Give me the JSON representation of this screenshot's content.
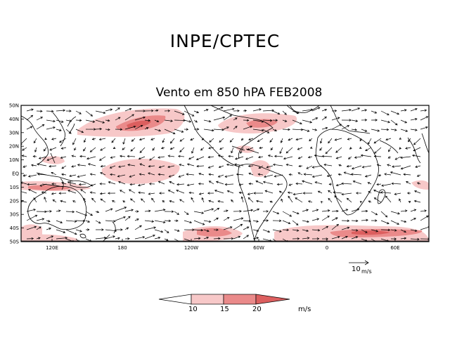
{
  "header": {
    "title": "INPE/CPTEC",
    "subtitle": "Vento em 850 hPA FEB2008"
  },
  "map": {
    "lat_labels": [
      "50N",
      "40N",
      "30N",
      "20N",
      "10N",
      "EQ",
      "10S",
      "20S",
      "30S",
      "40S",
      "50S"
    ],
    "lon_labels": [
      "120E",
      "180",
      "120W",
      "60W",
      "0",
      "60E"
    ],
    "reference_vector": {
      "value": "10",
      "unit": "m/s"
    },
    "colors": {
      "light": "#f7c8c8",
      "medium": "#ea8a8a",
      "dark": "#dc5f5f",
      "land": "#000000"
    }
  },
  "colorbar": {
    "ticks": [
      "10",
      "15",
      "20"
    ],
    "unit": "m/s"
  }
}
